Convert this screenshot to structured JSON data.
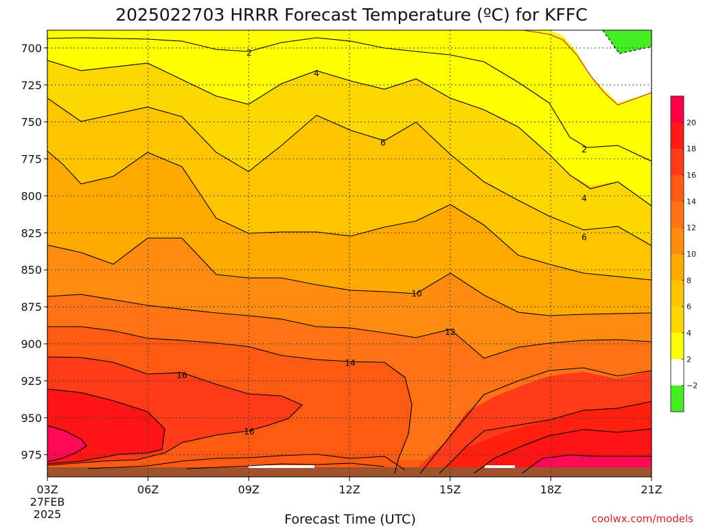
{
  "chart_data": {
    "type": "heatmap",
    "title": "2025022703 HRRR Forecast Temperature (ºC) for KFFC",
    "xlabel": "Forecast Time (UTC)",
    "ylabel": "",
    "x_ticks": [
      "03Z",
      "06Z",
      "09Z",
      "12Z",
      "15Z",
      "18Z",
      "21Z"
    ],
    "x_start_date": "27FEB",
    "x_start_year": "2025",
    "y_ticks": [
      700,
      725,
      750,
      775,
      800,
      825,
      850,
      875,
      900,
      925,
      950,
      975
    ],
    "y_range": [
      688,
      990
    ],
    "x_range_hours": [
      3,
      21
    ],
    "colorbar": {
      "labels": [
        "20",
        "18",
        "16",
        "14",
        "12",
        "10",
        "8",
        "6",
        "4",
        "2",
        "−2"
      ],
      "colors": [
        "#ff0044",
        "#ff1a1a",
        "#ff3b1a",
        "#ff5a14",
        "#ff7316",
        "#ff8c10",
        "#ffa800",
        "#ffc400",
        "#ffd600",
        "#ffff00",
        "#ffffff",
        "#44ee22"
      ]
    },
    "contour_labels": [
      "2",
      "4",
      "6",
      "10",
      "12",
      "14",
      "16",
      "16",
      "2",
      "4",
      "6"
    ],
    "credit": "coolwx.com/models"
  }
}
